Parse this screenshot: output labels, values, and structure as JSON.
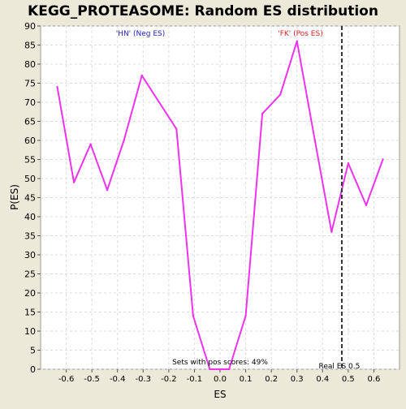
{
  "chart_data": {
    "type": "line",
    "title": "KEGG_PROTEASOME: Random ES distribution",
    "xlabel": "ES",
    "ylabel": "P(ES)",
    "xlim": [
      -0.7,
      0.7
    ],
    "ylim": [
      0,
      90
    ],
    "x_ticks": [
      -0.6,
      -0.5,
      -0.4,
      -0.3,
      -0.2,
      -0.1,
      0.0,
      0.1,
      0.2,
      0.3,
      0.4,
      0.5,
      0.6
    ],
    "x_tick_labels": [
      "-0.6",
      "-0.5",
      "-0.4",
      "-0.3",
      "-0.2",
      "-0.1",
      "0.0",
      "0.1",
      "0.2",
      "0.3",
      "0.4",
      "0.5",
      "0.6"
    ],
    "y_ticks": [
      0,
      5,
      10,
      15,
      20,
      25,
      30,
      35,
      40,
      45,
      50,
      55,
      60,
      65,
      70,
      75,
      80,
      85,
      90
    ],
    "grid": true,
    "series": [
      {
        "color": "#ee33ee",
        "x": [
          -0.635,
          -0.57,
          -0.505,
          -0.44,
          -0.375,
          -0.305,
          -0.17,
          -0.105,
          -0.04,
          0.035,
          0.1,
          0.165,
          0.235,
          0.3,
          0.37,
          0.435,
          0.5,
          0.57,
          0.635
        ],
        "y": [
          74,
          49,
          59,
          47,
          60,
          77,
          63,
          14,
          0,
          0,
          14,
          67,
          72,
          86,
          60,
          36,
          54,
          43,
          55
        ]
      }
    ],
    "vline": {
      "x": 0.475,
      "label": "Real ES 0.5",
      "style": "dashed",
      "color": "#333333"
    },
    "annotations": {
      "neg_label": "'HN' (Neg ES)",
      "neg_color": "#2222bb",
      "pos_label": "'FK' (Pos ES)",
      "pos_color": "#dd2222",
      "pos_scores": "Sets with pos scores: 49%"
    }
  }
}
